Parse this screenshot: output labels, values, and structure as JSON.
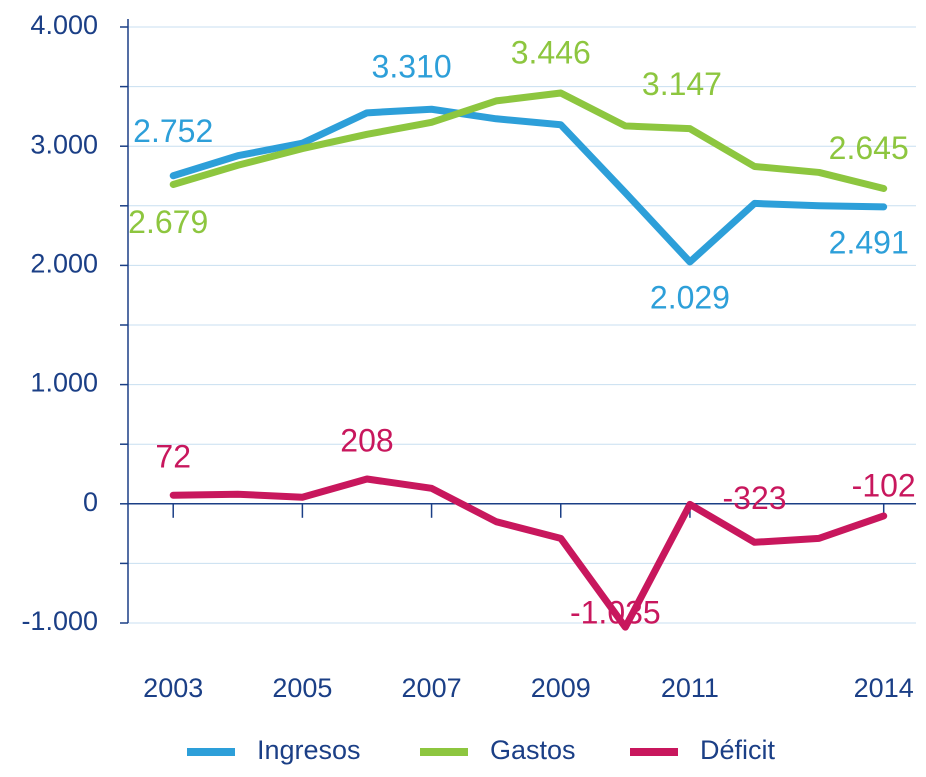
{
  "chart_data": {
    "type": "line",
    "x": [
      2003,
      2004,
      2005,
      2006,
      2007,
      2008,
      2009,
      2010,
      2011,
      2012,
      2013,
      2014
    ],
    "xlim": [
      2002.3,
      2014.5
    ],
    "xticks": [
      2003,
      2005,
      2007,
      2009,
      2011,
      2014
    ],
    "ylim": [
      -1000,
      4000
    ],
    "yticks": [
      {
        "value": -1000,
        "label": "-1.000"
      },
      0,
      {
        "value": 1000,
        "label": "1.000"
      },
      {
        "value": 2000,
        "label": "2.000"
      },
      {
        "value": 3000,
        "label": "3.000"
      },
      {
        "value": 4000,
        "label": "4.000"
      }
    ],
    "yminor": [
      -500,
      500,
      1500,
      2500,
      3500
    ],
    "grid": true,
    "legend": "bottom",
    "series": [
      {
        "name": "Ingresos",
        "color": "#2d9fd9",
        "values": [
          2752,
          2920,
          3025,
          3280,
          3310,
          3230,
          3180,
          2610,
          2029,
          2520,
          2500,
          2491
        ],
        "value_labels": [
          "2.752",
          null,
          null,
          null,
          "3.310",
          null,
          null,
          null,
          "2.029",
          null,
          null,
          "2.491"
        ]
      },
      {
        "name": "Gastos",
        "color": "#8dc63f",
        "values": [
          2679,
          2840,
          2980,
          3100,
          3200,
          3380,
          3446,
          3170,
          3147,
          2830,
          2780,
          2645
        ],
        "value_labels": [
          "2.679",
          null,
          null,
          null,
          null,
          null,
          "3.446",
          null,
          "3.147",
          null,
          null,
          "2.645"
        ]
      },
      {
        "name": "Déficit",
        "color": "#c8175d",
        "values": [
          72,
          80,
          55,
          208,
          130,
          -150,
          -290,
          -1035,
          -5,
          -323,
          -290,
          -102
        ],
        "value_labels": [
          "72",
          null,
          null,
          "208",
          null,
          null,
          null,
          "-1.035",
          null,
          "-323",
          null,
          "-102"
        ]
      }
    ]
  }
}
